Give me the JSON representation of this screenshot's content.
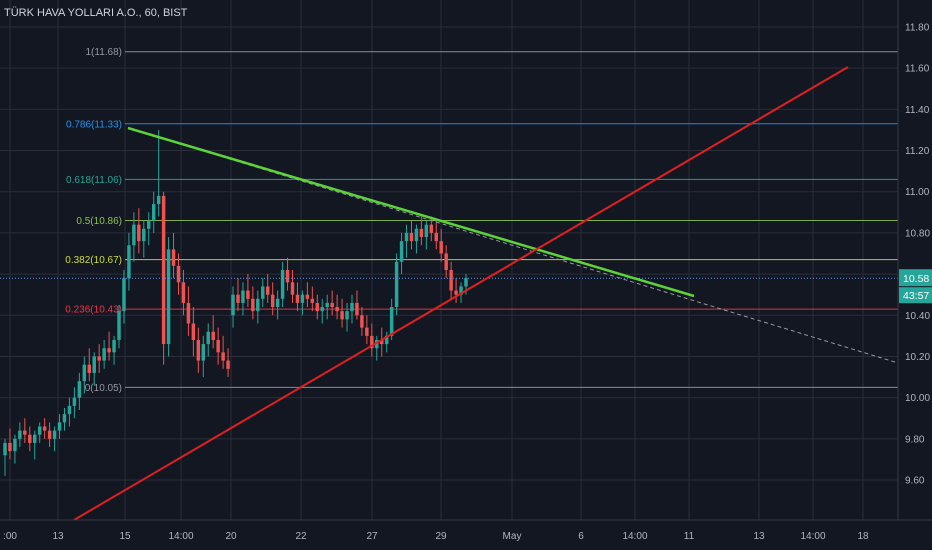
{
  "header": {
    "title": "TÜRK HAVA YOLLARI A.O., 60, BIST"
  },
  "price_badges": {
    "last_price": "10.58",
    "countdown": "43:57"
  },
  "chart_data": {
    "type": "candlestick",
    "title": "TÜRK HAVA YOLLARI A.O., 60, BIST",
    "ylim": [
      9.4,
      11.95
    ],
    "y_ticks": [
      "9.60",
      "9.80",
      "10.00",
      "10.20",
      "10.40",
      "10.60",
      "10.80",
      "11.00",
      "11.20",
      "11.40",
      "11.60",
      "11.80"
    ],
    "x_ticks": [
      ":00",
      "13",
      "15",
      "14:00",
      "20",
      "22",
      "27",
      "29",
      "May",
      "6",
      "14:00",
      "11",
      "13",
      "14:00",
      "18"
    ],
    "grid": true,
    "last_price": 10.58,
    "fibonacci": [
      {
        "label": "1(11.68)",
        "value": 11.68,
        "color": "#9598a1"
      },
      {
        "label": "0.786(11.33)",
        "value": 11.33,
        "color": "#2196f3"
      },
      {
        "label": "0.618(11.06)",
        "value": 11.06,
        "color": "#26a69a"
      },
      {
        "label": "0.5(10.86)",
        "value": 10.86,
        "color": "#8bc34a"
      },
      {
        "label": "0.382(10.67)",
        "value": 10.67,
        "color": "#cddc39"
      },
      {
        "label": "0.236(10.43)",
        "value": 10.43,
        "color": "#f23645"
      },
      {
        "label": "0(10.05)",
        "value": 10.05,
        "color": "#9598a1"
      }
    ],
    "trendlines": [
      {
        "name": "green",
        "color": "#5bd339"
      },
      {
        "name": "red",
        "color": "#e02020"
      }
    ],
    "colors": {
      "up": "#26a69a",
      "down": "#ef5350",
      "background": "#131722",
      "grid": "#2a2e39"
    },
    "candles": [
      [
        9.72,
        9.8,
        9.62,
        9.78
      ],
      [
        9.78,
        9.85,
        9.7,
        9.74
      ],
      [
        9.74,
        9.82,
        9.68,
        9.8
      ],
      [
        9.8,
        9.88,
        9.76,
        9.84
      ],
      [
        9.84,
        9.9,
        9.78,
        9.82
      ],
      [
        9.82,
        9.86,
        9.74,
        9.78
      ],
      [
        9.78,
        9.84,
        9.7,
        9.82
      ],
      [
        9.82,
        9.88,
        9.78,
        9.86
      ],
      [
        9.86,
        9.9,
        9.8,
        9.84
      ],
      [
        9.84,
        9.88,
        9.76,
        9.8
      ],
      [
        9.8,
        9.86,
        9.74,
        9.84
      ],
      [
        9.84,
        9.92,
        9.8,
        9.88
      ],
      [
        9.88,
        9.95,
        9.84,
        9.92
      ],
      [
        9.92,
        10.0,
        9.86,
        9.96
      ],
      [
        9.96,
        10.05,
        9.9,
        10.0
      ],
      [
        10.0,
        10.12,
        9.94,
        10.08
      ],
      [
        10.08,
        10.2,
        10.02,
        10.16
      ],
      [
        10.16,
        10.24,
        10.08,
        10.12
      ],
      [
        10.12,
        10.22,
        10.06,
        10.2
      ],
      [
        10.2,
        10.26,
        10.12,
        10.18
      ],
      [
        10.18,
        10.28,
        10.14,
        10.24
      ],
      [
        10.24,
        10.32,
        10.18,
        10.22
      ],
      [
        10.22,
        10.3,
        10.16,
        10.28
      ],
      [
        10.28,
        10.45,
        10.24,
        10.42
      ],
      [
        10.42,
        10.62,
        10.36,
        10.58
      ],
      [
        10.58,
        10.8,
        10.52,
        10.74
      ],
      [
        10.74,
        10.9,
        10.66,
        10.84
      ],
      [
        10.84,
        10.92,
        10.7,
        10.76
      ],
      [
        10.76,
        10.86,
        10.68,
        10.82
      ],
      [
        10.82,
        10.9,
        10.74,
        10.86
      ],
      [
        10.86,
        11.0,
        10.8,
        10.94
      ],
      [
        10.94,
        11.3,
        10.88,
        10.98
      ],
      [
        10.98,
        11.0,
        10.16,
        10.26
      ],
      [
        10.26,
        10.78,
        10.2,
        10.72
      ],
      [
        10.72,
        10.8,
        10.58,
        10.64
      ],
      [
        10.64,
        10.7,
        10.5,
        10.56
      ],
      [
        10.56,
        10.62,
        10.4,
        10.46
      ],
      [
        10.46,
        10.54,
        10.3,
        10.36
      ],
      [
        10.36,
        10.44,
        10.2,
        10.28
      ],
      [
        10.28,
        10.34,
        10.12,
        10.18
      ],
      [
        10.18,
        10.3,
        10.1,
        10.26
      ],
      [
        10.26,
        10.36,
        10.2,
        10.32
      ],
      [
        10.32,
        10.4,
        10.24,
        10.28
      ],
      [
        10.28,
        10.34,
        10.16,
        10.22
      ],
      [
        10.22,
        10.3,
        10.14,
        10.18
      ],
      [
        10.18,
        10.24,
        10.1,
        10.14
      ],
      [
        10.4,
        10.54,
        10.34,
        10.5
      ],
      [
        10.5,
        10.58,
        10.42,
        10.46
      ],
      [
        10.46,
        10.56,
        10.4,
        10.52
      ],
      [
        10.52,
        10.6,
        10.44,
        10.48
      ],
      [
        10.48,
        10.54,
        10.38,
        10.42
      ],
      [
        10.42,
        10.52,
        10.36,
        10.48
      ],
      [
        10.48,
        10.58,
        10.44,
        10.54
      ],
      [
        10.54,
        10.6,
        10.46,
        10.5
      ],
      [
        10.5,
        10.56,
        10.4,
        10.44
      ],
      [
        10.44,
        10.52,
        10.38,
        10.48
      ],
      [
        10.48,
        10.66,
        10.44,
        10.62
      ],
      [
        10.62,
        10.68,
        10.52,
        10.56
      ],
      [
        10.56,
        10.62,
        10.46,
        10.5
      ],
      [
        10.5,
        10.56,
        10.42,
        10.46
      ],
      [
        10.46,
        10.52,
        10.4,
        10.5
      ],
      [
        10.5,
        10.56,
        10.44,
        10.48
      ],
      [
        10.48,
        10.54,
        10.42,
        10.46
      ],
      [
        10.46,
        10.5,
        10.38,
        10.42
      ],
      [
        10.42,
        10.48,
        10.36,
        10.44
      ],
      [
        10.44,
        10.5,
        10.38,
        10.46
      ],
      [
        10.46,
        10.52,
        10.4,
        10.44
      ],
      [
        10.44,
        10.5,
        10.38,
        10.42
      ],
      [
        10.42,
        10.48,
        10.34,
        10.38
      ],
      [
        10.38,
        10.46,
        10.32,
        10.42
      ],
      [
        10.42,
        10.5,
        10.36,
        10.46
      ],
      [
        10.46,
        10.52,
        10.38,
        10.4
      ],
      [
        10.4,
        10.44,
        10.3,
        10.34
      ],
      [
        10.34,
        10.4,
        10.26,
        10.3
      ],
      [
        10.3,
        10.36,
        10.2,
        10.24
      ],
      [
        10.24,
        10.3,
        10.18,
        10.28
      ],
      [
        10.28,
        10.34,
        10.2,
        10.26
      ],
      [
        10.26,
        10.32,
        10.22,
        10.3
      ],
      [
        10.3,
        10.48,
        10.28,
        10.44
      ],
      [
        10.44,
        10.7,
        10.4,
        10.66
      ],
      [
        10.66,
        10.8,
        10.6,
        10.76
      ],
      [
        10.76,
        10.84,
        10.68,
        10.8
      ],
      [
        10.8,
        10.86,
        10.72,
        10.76
      ],
      [
        10.76,
        10.84,
        10.7,
        10.82
      ],
      [
        10.82,
        10.88,
        10.74,
        10.78
      ],
      [
        10.78,
        10.86,
        10.72,
        10.84
      ],
      [
        10.84,
        10.88,
        10.76,
        10.8
      ],
      [
        10.8,
        10.86,
        10.72,
        10.76
      ],
      [
        10.76,
        10.82,
        10.66,
        10.7
      ],
      [
        10.7,
        10.74,
        10.58,
        10.62
      ],
      [
        10.62,
        10.66,
        10.48,
        10.52
      ],
      [
        10.52,
        10.58,
        10.46,
        10.5
      ],
      [
        10.5,
        10.56,
        10.46,
        10.54
      ],
      [
        10.54,
        10.6,
        10.5,
        10.58
      ]
    ]
  }
}
